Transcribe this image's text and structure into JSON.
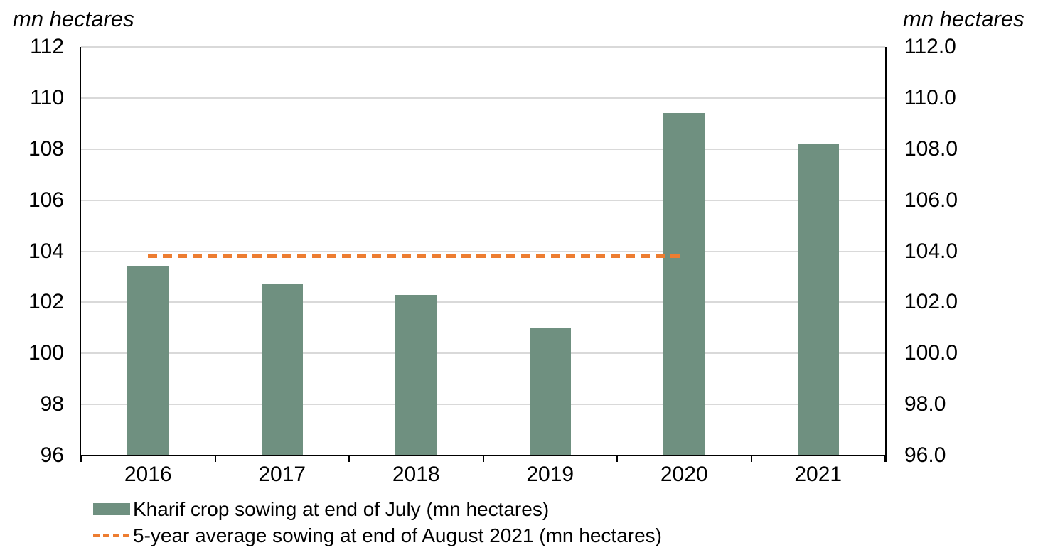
{
  "chart_data": {
    "type": "bar",
    "categories": [
      "2016",
      "2017",
      "2018",
      "2019",
      "2020",
      "2021"
    ],
    "series": [
      {
        "name": "Kharif crop sowing at end of July (mn hectares)",
        "type": "bar",
        "values": [
          103.4,
          102.7,
          102.3,
          101.0,
          109.4,
          108.2
        ]
      },
      {
        "name": "5-year average sowing at end of August 2021 (mn hectares)",
        "type": "dashed-line",
        "values": [
          103.8,
          103.8,
          103.8,
          103.8,
          103.8,
          null
        ]
      }
    ],
    "left_axis": {
      "title": "mn hectares",
      "ticks": [
        "96",
        "98",
        "100",
        "102",
        "104",
        "106",
        "108",
        "110",
        "112"
      ]
    },
    "right_axis": {
      "title": "mn hectares",
      "ticks": [
        "96.0",
        "98.0",
        "100.0",
        "102.0",
        "104.0",
        "106.0",
        "108.0",
        "110.0",
        "112.0"
      ]
    },
    "ylim": [
      96,
      112
    ],
    "grid": true,
    "legend_position": "bottom-left",
    "colors": {
      "bar": "#6F9080",
      "line": "#ED7D31",
      "grid": "#D9D9D9",
      "axis": "#000000"
    }
  }
}
